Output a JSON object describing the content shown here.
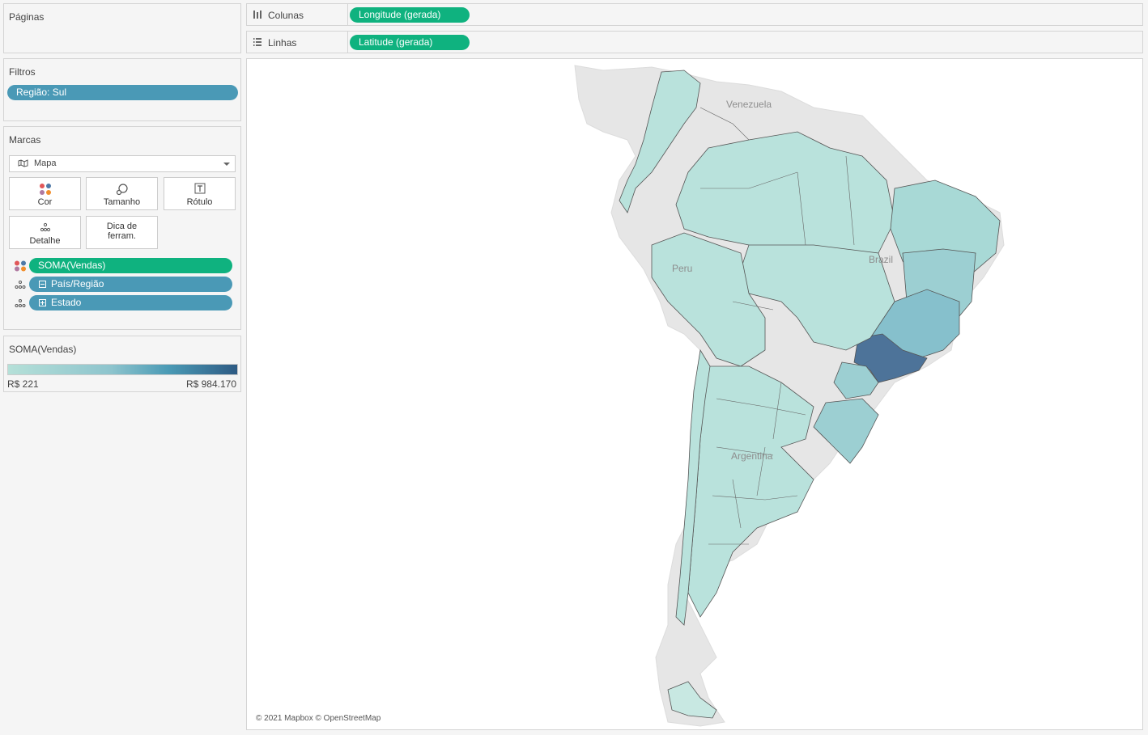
{
  "pages_card": {
    "title": "Páginas"
  },
  "filters_card": {
    "title": "Filtros",
    "filter_pill": "Região: Sul"
  },
  "marks_card": {
    "title": "Marcas",
    "mark_type": "Mapa",
    "buttons": {
      "color": "Cor",
      "size": "Tamanho",
      "label": "Rótulo",
      "detail": "Detalhe",
      "tooltip_line1": "Dica de",
      "tooltip_line2": "ferram."
    },
    "fields": [
      {
        "label": "SOMA(Vendas)",
        "role": "color",
        "color": "#0fb27f"
      },
      {
        "label": "País/Região",
        "role": "detail",
        "color": "#4a99b6"
      },
      {
        "label": "Estado",
        "role": "detail",
        "color": "#4a99b6"
      }
    ]
  },
  "legend": {
    "title": "SOMA(Vendas)",
    "min_label": "R$ 221",
    "max_label": "R$ 984.170",
    "color_low": "#b5e0d8",
    "color_high": "#2e5b84"
  },
  "shelves": {
    "columns": {
      "label": "Colunas",
      "pill": "Longitude (gerada)"
    },
    "rows": {
      "label": "Linhas",
      "pill": "Latitude (gerada)"
    }
  },
  "map": {
    "country_labels": [
      "Venezuela",
      "Brazil",
      "Peru",
      "Argentina"
    ],
    "credit": "© 2021 Mapbox © OpenStreetMap",
    "highlighted_state_color": "#4d7399",
    "base_color": "#b9e2dc",
    "land_color": "#e6e6e6"
  }
}
